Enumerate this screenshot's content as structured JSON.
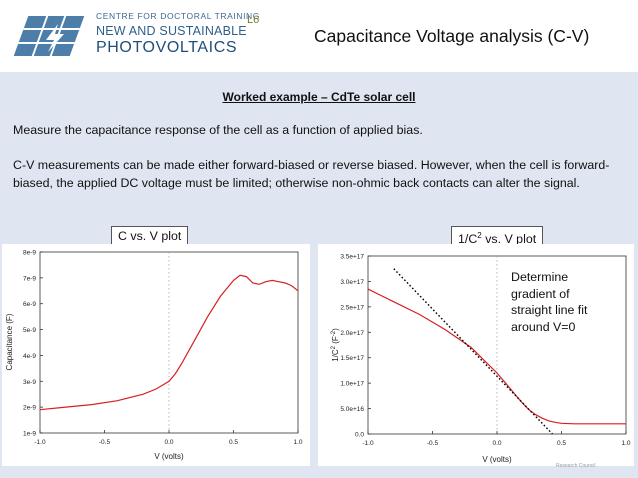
{
  "header": {
    "org_line1": "CENTRE FOR DOCTORAL TRAINING",
    "org_line2": "NEW AND SUSTAINABLE",
    "org_line3": "PHOTOVOLTAICS",
    "lecture": "L6",
    "title": "Capacitance Voltage analysis (C-V)"
  },
  "content": {
    "subtitle": "Worked example – CdTe solar cell",
    "para1": "Measure the capacitance response of the cell as a function of applied bias.",
    "para2": "C-V measurements can be made either forward-biased or reverse biased. However, when the cell is forward-biased, the applied DC voltage must be limited; otherwise non-ohmic back contacts can alter the signal.",
    "tag1": "C vs. V plot",
    "tag2_base": "1/C",
    "tag2_sup": "2",
    "tag2_rest": " vs. V plot",
    "callout": "Determine\ngradient of\nstraight line fit\naround V=0",
    "footer": "Research Council"
  },
  "colors": {
    "curve": "#d62020",
    "fit": "#000000",
    "band": "#dfe6f2"
  },
  "chart_data": [
    {
      "type": "line",
      "title": "",
      "xlabel": "V (volts)",
      "ylabel": "Capacitance (F)",
      "xlim": [
        -1.0,
        1.0
      ],
      "ylim": [
        1e-09,
        8e-09
      ],
      "xticks": [
        "-1.0",
        "-0.5",
        "0.0",
        "0.5",
        "1.0"
      ],
      "yticks": [
        "1e-9",
        "2e-9",
        "3e-9",
        "4e-9",
        "5e-9",
        "6e-9",
        "7e-9",
        "8e-9"
      ],
      "series": [
        {
          "x": [
            -1.0,
            -0.8,
            -0.6,
            -0.4,
            -0.2,
            -0.1,
            0.0,
            0.05,
            0.1,
            0.2,
            0.3,
            0.4,
            0.5,
            0.55,
            0.6,
            0.65,
            0.7,
            0.75,
            0.8,
            0.85,
            0.9,
            0.95,
            1.0
          ],
          "y": [
            1.9e-09,
            2e-09,
            2.1e-09,
            2.25e-09,
            2.5e-09,
            2.7e-09,
            3e-09,
            3.3e-09,
            3.7e-09,
            4.6e-09,
            5.5e-09,
            6.3e-09,
            6.9e-09,
            7.1e-09,
            7.05e-09,
            6.8e-09,
            6.75e-09,
            6.85e-09,
            6.9e-09,
            6.85e-09,
            6.8e-09,
            6.7e-09,
            6.5e-09
          ]
        }
      ]
    },
    {
      "type": "line",
      "title": "",
      "xlabel": "V (volts)",
      "ylabel_base": "1/C",
      "ylabel_sup1": "2",
      "ylabel_mid": " (F",
      "ylabel_sup2": "-2",
      "ylabel_end": ")",
      "xlim": [
        -1.0,
        1.0
      ],
      "ylim": [
        0,
        3.5e+17
      ],
      "xticks": [
        "-1.0",
        "-0.5",
        "0.0",
        "0.5",
        "1.0"
      ],
      "yticks": [
        "0.0",
        "5.0e+16",
        "1.0e+17",
        "1.5e+17",
        "2.0e+17",
        "2.5e+17",
        "3.0e+17",
        "3.5e+17"
      ],
      "series": [
        {
          "x": [
            -1.0,
            -0.8,
            -0.6,
            -0.4,
            -0.2,
            -0.1,
            0.0,
            0.05,
            0.1,
            0.15,
            0.2,
            0.25,
            0.3,
            0.35,
            0.4,
            0.45,
            0.5,
            0.6,
            0.7,
            0.8,
            1.0
          ],
          "y": [
            2.85e+17,
            2.6e+17,
            2.35e+17,
            2.05e+17,
            1.7e+17,
            1.45e+17,
            1.2e+17,
            1.05e+17,
            9e+16,
            7.5e+16,
            6e+16,
            4.7e+16,
            3.8e+16,
            3.1e+16,
            2.6e+16,
            2.3e+16,
            2.1e+16,
            2e+16,
            2e+16,
            2e+16,
            2e+16
          ]
        }
      ],
      "fit_line": {
        "x": [
          -0.8,
          0.43
        ],
        "y": [
          3.25e+17,
          0
        ]
      }
    }
  ]
}
